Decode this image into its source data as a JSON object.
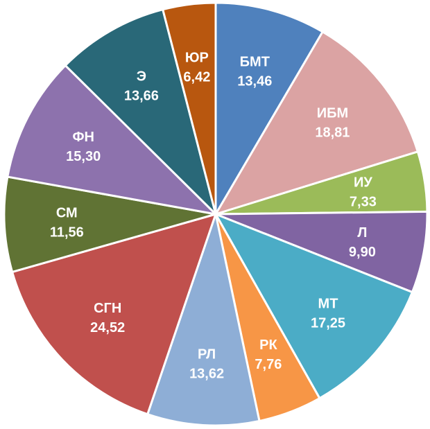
{
  "chart_data": {
    "type": "pie",
    "title": "",
    "slices": [
      {
        "label": "БМТ",
        "value": 13.46,
        "text": "13,46",
        "color": "#4f81bd"
      },
      {
        "label": "ИБМ",
        "value": 18.81,
        "text": "18,81",
        "color": "#dba3a3"
      },
      {
        "label": "ИУ",
        "value": 7.33,
        "text": "7,33",
        "color": "#9bbb59"
      },
      {
        "label": "Л",
        "value": 9.9,
        "text": "9,90",
        "color": "#8064a2"
      },
      {
        "label": "МТ",
        "value": 17.25,
        "text": "17,25",
        "color": "#4bacc6"
      },
      {
        "label": "РК",
        "value": 7.76,
        "text": "7,76",
        "color": "#f79646"
      },
      {
        "label": "РЛ",
        "value": 13.62,
        "text": "13,62",
        "color": "#8eaed6"
      },
      {
        "label": "СГН",
        "value": 24.52,
        "text": "24,52",
        "color": "#c0504d"
      },
      {
        "label": "СМ",
        "value": 11.56,
        "text": "11,56",
        "color": "#607334"
      },
      {
        "label": "ФН",
        "value": 15.3,
        "text": "15,30",
        "color": "#8d72ad"
      },
      {
        "label": "Э",
        "value": 13.66,
        "text": "13,66",
        "color": "#296878"
      },
      {
        "label": "ЮР",
        "value": 6.42,
        "text": "6,42",
        "color": "#b8570f"
      }
    ]
  }
}
